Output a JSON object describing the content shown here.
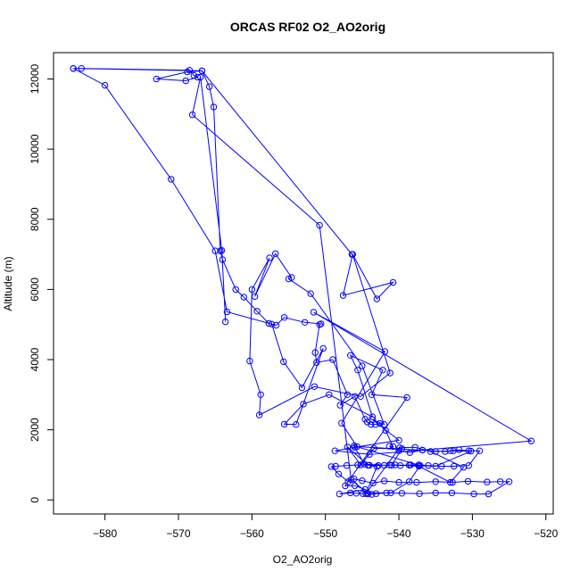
{
  "chart_data": {
    "type": "line",
    "title": "ORCAS RF02 O2_AO2orig",
    "xlabel": "O2_AO2orig",
    "ylabel": "Altitude (m)",
    "xlim": [
      -587,
      -519
    ],
    "ylim": [
      -400,
      12750
    ],
    "xticks": [
      -580,
      -570,
      -560,
      -550,
      -540,
      -530,
      -520
    ],
    "yticks": [
      0,
      2000,
      4000,
      6000,
      8000,
      10000,
      12000
    ],
    "grid": false,
    "legend": "none",
    "series_color": "#0000ff",
    "points": [
      [
        -584.3,
        12300
      ],
      [
        -583.2,
        12300
      ],
      [
        -568.5,
        12250
      ],
      [
        -567.9,
        12100
      ],
      [
        -567.4,
        12050
      ],
      [
        -569.0,
        11950
      ],
      [
        -573.0,
        12000
      ],
      [
        -568.8,
        12200
      ],
      [
        -566.8,
        12230
      ],
      [
        -565.8,
        11780
      ],
      [
        -565.2,
        11200
      ],
      [
        -564.3,
        7100
      ],
      [
        -564.0,
        6850
      ],
      [
        -562.2,
        6000
      ],
      [
        -561.1,
        5780
      ],
      [
        -559.3,
        5380
      ],
      [
        -557.7,
        5030
      ],
      [
        -556.7,
        4980
      ],
      [
        -555.6,
        5200
      ],
      [
        -552.8,
        5060
      ],
      [
        -550.6,
        5020
      ],
      [
        -550.8,
        5000
      ],
      [
        -551.4,
        4200
      ],
      [
        -551.2,
        3920
      ],
      [
        -549.0,
        4000
      ],
      [
        -547.0,
        3000
      ],
      [
        -548.0,
        2700
      ],
      [
        -546.0,
        2950
      ],
      [
        -544.6,
        2300
      ],
      [
        -544.3,
        2220
      ],
      [
        -543.8,
        2150
      ],
      [
        -543.2,
        2150
      ],
      [
        -542.6,
        2180
      ],
      [
        -541.8,
        1980
      ],
      [
        -540.8,
        1520
      ],
      [
        -541.3,
        1530
      ],
      [
        -540.0,
        1400
      ],
      [
        -538.5,
        1350
      ],
      [
        -536.8,
        1420
      ],
      [
        -535.0,
        1380
      ],
      [
        -533.0,
        1400
      ],
      [
        -531.8,
        1430
      ],
      [
        -530.5,
        1400
      ],
      [
        -529.0,
        1400
      ],
      [
        -530.5,
        980
      ],
      [
        -532.5,
        960
      ],
      [
        -534.2,
        960
      ],
      [
        -536.0,
        980
      ],
      [
        -537.3,
        1000
      ],
      [
        -538.4,
        1000
      ],
      [
        -539.8,
        980
      ],
      [
        -541.3,
        1000
      ],
      [
        -542.8,
        980
      ],
      [
        -544.0,
        990
      ],
      [
        -545.6,
        1000
      ],
      [
        -547.1,
        980
      ],
      [
        -548.6,
        960
      ],
      [
        -549.2,
        950
      ],
      [
        -548.2,
        740
      ],
      [
        -546.9,
        520
      ],
      [
        -546.1,
        600
      ],
      [
        -545.0,
        550
      ],
      [
        -543.5,
        480
      ],
      [
        -542.0,
        540
      ],
      [
        -540.0,
        500
      ],
      [
        -537.6,
        500
      ],
      [
        -535.0,
        520
      ],
      [
        -532.7,
        500
      ],
      [
        -530.6,
        530
      ],
      [
        -528.0,
        510
      ],
      [
        -526.2,
        520
      ],
      [
        -525.0,
        520
      ],
      [
        -527.8,
        170
      ],
      [
        -529.8,
        170
      ],
      [
        -532.8,
        200
      ],
      [
        -535.0,
        200
      ],
      [
        -537.2,
        180
      ],
      [
        -539.6,
        190
      ],
      [
        -541.7,
        200
      ],
      [
        -543.1,
        180
      ],
      [
        -543.7,
        160
      ],
      [
        -544.2,
        170
      ],
      [
        -544.9,
        180
      ],
      [
        -545.8,
        190
      ],
      [
        -546.6,
        200
      ],
      [
        -548.1,
        170
      ],
      [
        -544.6,
        300
      ],
      [
        -546.0,
        410
      ],
      [
        -547.3,
        400
      ],
      [
        -538.9,
        2920
      ],
      [
        -543.7,
        3000
      ],
      [
        -542.2,
        3700
      ],
      [
        -546.6,
        4120
      ],
      [
        -545.6,
        3700
      ],
      [
        -543.6,
        2370
      ],
      [
        -549.5,
        3000
      ],
      [
        -553.0,
        2730
      ],
      [
        -555.6,
        2160
      ],
      [
        -554.0,
        2150
      ],
      [
        -550.3,
        4320
      ],
      [
        -553.2,
        3200
      ],
      [
        -555.7,
        3940
      ],
      [
        -557.3,
        5010
      ],
      [
        -563.4,
        5360
      ],
      [
        -565.0,
        7100
      ],
      [
        -571.0,
        9140
      ],
      [
        -580.0,
        11820
      ],
      [
        -584.3,
        12300
      ],
      [
        -566.8,
        12230
      ],
      [
        -546.4,
        7000
      ],
      [
        -546.3,
        7000
      ],
      [
        -543.0,
        5730
      ],
      [
        -540.8,
        6200
      ],
      [
        -547.6,
        5830
      ],
      [
        -546.3,
        7000
      ],
      [
        -541.2,
        3620
      ],
      [
        -545.2,
        2950
      ],
      [
        -551.5,
        3230
      ],
      [
        -559.0,
        2420
      ],
      [
        -558.8,
        3000
      ],
      [
        -560.3,
        3960
      ],
      [
        -560.0,
        6000
      ],
      [
        -557.6,
        6900
      ],
      [
        -559.6,
        5800
      ],
      [
        -556.8,
        7020
      ],
      [
        -554.6,
        6340
      ],
      [
        -555.0,
        6300
      ],
      [
        -552.0,
        5880
      ],
      [
        -545.0,
        3820
      ],
      [
        -542.0,
        2150
      ],
      [
        -543.6,
        2290
      ],
      [
        -540.0,
        1700
      ],
      [
        -546.0,
        1500
      ],
      [
        -548.7,
        1400
      ],
      [
        -544.0,
        1300
      ],
      [
        -536.8,
        1420
      ],
      [
        -522.0,
        1680
      ],
      [
        -551.6,
        5350
      ],
      [
        -541.9,
        4230
      ],
      [
        -547.8,
        2190
      ],
      [
        -545.7,
        1520
      ],
      [
        -533.7,
        1380
      ],
      [
        -532.6,
        1400
      ],
      [
        -530.2,
        1390
      ],
      [
        -535.0,
        960
      ],
      [
        -538.6,
        990
      ],
      [
        -541.0,
        990
      ],
      [
        -539.6,
        1460
      ],
      [
        -543.4,
        1470
      ],
      [
        -545.2,
        1000
      ],
      [
        -547.0,
        1510
      ],
      [
        -544.2,
        990
      ],
      [
        -543.0,
        950
      ],
      [
        -544.5,
        180
      ],
      [
        -539.9,
        1490
      ],
      [
        -537.8,
        1500
      ],
      [
        -535.7,
        1380
      ],
      [
        -531.2,
        930
      ],
      [
        -533.0,
        500
      ],
      [
        -537.3,
        960
      ],
      [
        -540.5,
        1000
      ],
      [
        -542.0,
        990
      ],
      [
        -544.7,
        1020
      ],
      [
        -546.1,
        1540
      ],
      [
        -537.1,
        980
      ],
      [
        -538.6,
        520
      ],
      [
        -541.1,
        200
      ],
      [
        -544.3,
        200
      ],
      [
        -546.5,
        580
      ],
      [
        -550.8,
        7830
      ],
      [
        -568.1,
        10980
      ],
      [
        -567.0,
        12050
      ],
      [
        -564.1,
        7110
      ],
      [
        -563.6,
        5080
      ]
    ]
  }
}
